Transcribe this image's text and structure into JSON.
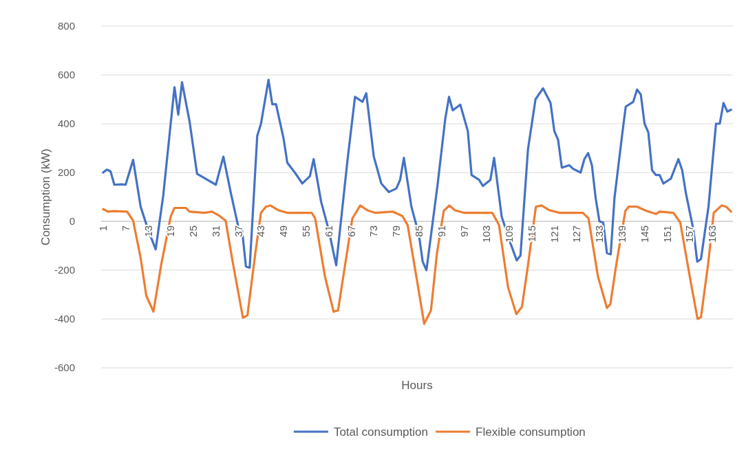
{
  "chart_data": {
    "type": "line",
    "xlabel": "Hours",
    "ylabel": "Consumption (kW)",
    "xlim": [
      0.5,
      168.5
    ],
    "xticks": [
      1,
      7,
      13,
      19,
      25,
      31,
      37,
      43,
      49,
      55,
      61,
      67,
      73,
      79,
      85,
      91,
      97,
      103,
      109,
      115,
      121,
      127,
      133,
      139,
      145,
      151,
      157,
      163
    ],
    "ylim": [
      -600,
      800
    ],
    "yticks": [
      -600,
      -400,
      -200,
      0,
      200,
      400,
      600,
      800
    ],
    "grid": "y",
    "legend": "bottom",
    "line_style": "solid",
    "marker": "none",
    "series": [
      {
        "name": "Total consumption",
        "color": "#4472c4",
        "x": [
          1,
          2,
          3,
          4,
          6,
          7,
          9,
          11,
          13,
          15,
          17,
          20,
          21,
          22,
          24,
          26,
          29,
          31,
          33,
          35,
          37,
          38,
          39,
          40,
          42,
          43,
          45,
          46,
          47,
          49,
          50,
          52,
          54,
          56,
          57,
          59,
          61,
          63,
          66,
          68,
          70,
          71,
          73,
          75,
          77,
          79,
          80,
          81,
          83,
          85,
          86,
          87,
          90,
          92,
          93,
          94,
          96,
          98,
          99,
          101,
          102,
          104,
          105,
          107,
          109,
          111,
          112,
          114,
          116,
          118,
          120,
          121,
          122,
          123,
          125,
          126,
          128,
          129,
          130,
          131,
          132,
          133,
          134,
          135,
          136,
          137,
          139,
          140,
          142,
          143,
          144,
          145,
          146,
          147,
          148,
          149,
          150,
          152,
          154,
          155,
          156,
          158,
          159,
          160,
          162,
          164,
          165,
          166,
          167,
          168
        ],
        "values": [
          200,
          212,
          205,
          150,
          152,
          150,
          252,
          60,
          -35,
          -115,
          105,
          550,
          437,
          570,
          410,
          195,
          168,
          150,
          265,
          115,
          -25,
          -40,
          -185,
          -190,
          350,
          400,
          580,
          480,
          480,
          340,
          240,
          200,
          155,
          185,
          255,
          80,
          -35,
          -180,
          250,
          510,
          490,
          525,
          265,
          155,
          120,
          135,
          170,
          260,
          60,
          -55,
          -165,
          -200,
          155,
          420,
          510,
          455,
          478,
          370,
          190,
          170,
          145,
          170,
          260,
          20,
          -75,
          -160,
          -140,
          295,
          500,
          545,
          485,
          370,
          335,
          220,
          230,
          215,
          200,
          255,
          280,
          230,
          95,
          0,
          -5,
          -130,
          -135,
          95,
          350,
          470,
          490,
          540,
          520,
          400,
          365,
          210,
          190,
          190,
          155,
          175,
          255,
          210,
          115,
          -35,
          -165,
          -155,
          60,
          400,
          400,
          485,
          450,
          457
        ]
      },
      {
        "name": "Flexible consumption",
        "color": "#ed7d31",
        "x": [
          1,
          2.3,
          4,
          7.4,
          9,
          11,
          12.5,
          14.4,
          16.5,
          19,
          20,
          23,
          24,
          28,
          30,
          32,
          33.6,
          35.4,
          38.2,
          39.4,
          41.5,
          43,
          44.3,
          45.5,
          47.7,
          50,
          56.5,
          57.4,
          60,
          62.3,
          63.5,
          65.4,
          67.3,
          69.4,
          71.3,
          73.3,
          78,
          80.6,
          82,
          84.3,
          86.4,
          88.2,
          89.8,
          91.6,
          93.1,
          94.6,
          97,
          104.5,
          106.3,
          108.7,
          110.9,
          112.4,
          114,
          116.1,
          117.6,
          119.8,
          122.5,
          128.6,
          130.1,
          132.6,
          135,
          135.9,
          137.5,
          139.9,
          140.8,
          143,
          145.5,
          148,
          149,
          152.7,
          154.5,
          157.3,
          159.1,
          160,
          161.9,
          163.4,
          165.5,
          166.7,
          168
        ],
        "values": [
          50,
          40,
          42,
          40,
          3,
          -150,
          -305,
          -370,
          -175,
          20,
          55,
          55,
          40,
          35,
          40,
          22,
          3,
          -160,
          -395,
          -385,
          -130,
          35,
          60,
          65,
          45,
          35,
          35,
          12,
          -225,
          -370,
          -365,
          -175,
          12,
          65,
          45,
          35,
          40,
          22,
          -15,
          -225,
          -420,
          -365,
          -130,
          43,
          65,
          45,
          35,
          35,
          -15,
          -270,
          -380,
          -350,
          -180,
          60,
          65,
          45,
          35,
          35,
          12,
          -225,
          -355,
          -340,
          -175,
          43,
          60,
          60,
          43,
          30,
          40,
          35,
          -5,
          -250,
          -400,
          -393,
          -175,
          35,
          65,
          60,
          40
        ]
      }
    ]
  }
}
